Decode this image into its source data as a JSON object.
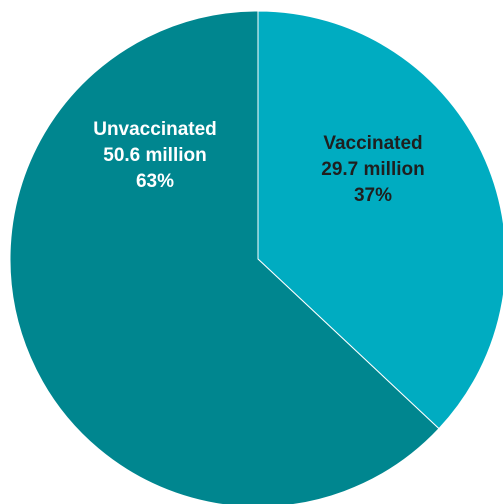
{
  "chart_data": {
    "type": "pie",
    "title": "",
    "slices": [
      {
        "name": "Vaccinated",
        "value": 29.7,
        "value_text": "29.7 million",
        "percent": 37,
        "percent_text": "37%",
        "color": "#00acc1"
      },
      {
        "name": "Unvaccinated",
        "value": 50.6,
        "value_text": "50.6 million",
        "percent": 63,
        "percent_text": "63%",
        "color": "#00868f"
      }
    ],
    "start": "12 o'clock",
    "direction": "clockwise",
    "legend": "none"
  }
}
